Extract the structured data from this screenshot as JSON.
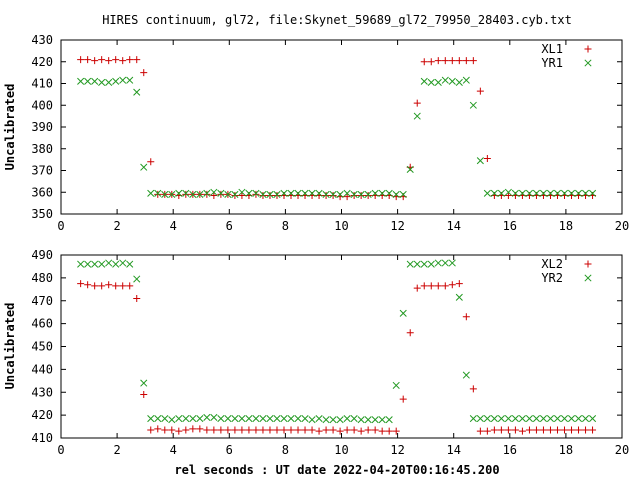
{
  "title": "HIRES continuum, gl72, file:Skynet_59689_gl72_79950_28403.cyb.txt",
  "xlabel": "rel seconds : UT date 2022-04-20T00:16:45.200",
  "colors": {
    "red": "#cc0000",
    "green": "#229922"
  },
  "chart_data": [
    {
      "type": "scatter",
      "ylabel": "Uncalibrated",
      "xlim": [
        0,
        20
      ],
      "ylim": [
        350,
        430
      ],
      "xticks": [
        0,
        2,
        4,
        6,
        8,
        10,
        12,
        14,
        16,
        18,
        20
      ],
      "yticks": [
        350,
        360,
        370,
        380,
        390,
        400,
        410,
        420,
        430
      ],
      "legend_position": "top-right",
      "grid": false,
      "series": [
        {
          "name": "XL1",
          "marker": "plus",
          "color": "#cc0000",
          "x": [
            0.7,
            0.95,
            1.2,
            1.45,
            1.7,
            1.95,
            2.2,
            2.45,
            2.7,
            2.95,
            3.2,
            3.45,
            3.7,
            3.95,
            4.2,
            4.45,
            4.7,
            4.95,
            5.2,
            5.45,
            5.7,
            5.95,
            6.2,
            6.45,
            6.7,
            6.95,
            7.2,
            7.45,
            7.7,
            7.95,
            8.2,
            8.45,
            8.7,
            8.95,
            9.2,
            9.45,
            9.7,
            9.95,
            10.2,
            10.45,
            10.7,
            10.95,
            11.2,
            11.45,
            11.7,
            11.95,
            12.2,
            12.45,
            12.7,
            12.95,
            13.2,
            13.45,
            13.7,
            13.95,
            14.2,
            14.45,
            14.7,
            14.95,
            15.2,
            15.45,
            15.7,
            15.95,
            16.2,
            16.45,
            16.7,
            16.95,
            17.2,
            17.45,
            17.7,
            17.95,
            18.2,
            18.45,
            18.7,
            18.95
          ],
          "y": [
            421,
            421,
            420.5,
            421,
            420.5,
            421,
            420.5,
            421,
            421,
            415,
            374,
            359,
            359,
            359,
            358.5,
            359,
            359,
            359,
            359,
            358.5,
            359,
            359,
            358.5,
            358.5,
            358.5,
            359,
            358.5,
            358.5,
            358.5,
            358.5,
            358.5,
            358.5,
            358.5,
            358.5,
            358.5,
            358.5,
            358.5,
            358,
            358,
            358.5,
            358.5,
            358.5,
            358.5,
            358.5,
            358.5,
            358,
            358,
            371.5,
            401,
            420,
            420,
            420.5,
            420.5,
            420.5,
            420.5,
            420.5,
            420.5,
            406.5,
            375.5,
            358.5,
            358.5,
            358.5,
            358.5,
            358.5,
            358.5,
            358.5,
            358.5,
            358.5,
            358.5,
            358.5,
            358.5,
            358.5,
            358.5,
            358.5
          ]
        },
        {
          "name": "YR1",
          "marker": "cross",
          "color": "#229922",
          "x": [
            0.7,
            0.95,
            1.2,
            1.45,
            1.7,
            1.95,
            2.2,
            2.45,
            2.7,
            2.95,
            3.2,
            3.45,
            3.7,
            3.95,
            4.2,
            4.45,
            4.7,
            4.95,
            5.2,
            5.45,
            5.7,
            5.95,
            6.2,
            6.45,
            6.7,
            6.95,
            7.2,
            7.45,
            7.7,
            7.95,
            8.2,
            8.45,
            8.7,
            8.95,
            9.2,
            9.45,
            9.7,
            9.95,
            10.2,
            10.45,
            10.7,
            10.95,
            11.2,
            11.45,
            11.7,
            11.95,
            12.2,
            12.45,
            12.7,
            12.95,
            13.2,
            13.45,
            13.7,
            13.95,
            14.2,
            14.45,
            14.7,
            14.95,
            15.2,
            15.45,
            15.7,
            15.95,
            16.2,
            16.45,
            16.7,
            16.95,
            17.2,
            17.45,
            17.7,
            17.95,
            18.2,
            18.45,
            18.7,
            18.95
          ],
          "y": [
            411,
            411,
            411,
            410.5,
            410.5,
            411,
            411.5,
            411.5,
            406,
            371.5,
            359.5,
            359.5,
            359,
            359,
            359.5,
            359.5,
            359,
            359,
            359.5,
            360,
            359.5,
            359,
            359,
            360,
            359.5,
            359.5,
            359,
            359,
            359,
            359.5,
            359.5,
            359.5,
            359.5,
            359.5,
            359.5,
            359,
            359,
            359,
            359.5,
            359,
            359,
            359,
            359.5,
            359.5,
            359.5,
            359,
            359,
            370.5,
            395,
            411,
            410.5,
            410.5,
            411.5,
            411,
            410.5,
            411.5,
            400,
            374.5,
            359.5,
            359.5,
            359.5,
            360,
            359.5,
            359.5,
            359.5,
            359.5,
            359.5,
            359.5,
            359.5,
            359.5,
            359.5,
            359.5,
            359.5,
            359.5
          ]
        }
      ]
    },
    {
      "type": "scatter",
      "ylabel": "Uncalibrated",
      "xlim": [
        0,
        20
      ],
      "ylim": [
        410,
        490
      ],
      "xticks": [
        0,
        2,
        4,
        6,
        8,
        10,
        12,
        14,
        16,
        18,
        20
      ],
      "yticks": [
        410,
        420,
        430,
        440,
        450,
        460,
        470,
        480,
        490
      ],
      "legend_position": "top-right",
      "grid": false,
      "series": [
        {
          "name": "XL2",
          "marker": "plus",
          "color": "#cc0000",
          "x": [
            0.7,
            0.95,
            1.2,
            1.45,
            1.7,
            1.95,
            2.2,
            2.45,
            2.7,
            2.95,
            3.2,
            3.45,
            3.7,
            3.95,
            4.2,
            4.45,
            4.7,
            4.95,
            5.2,
            5.45,
            5.7,
            5.95,
            6.2,
            6.45,
            6.7,
            6.95,
            7.2,
            7.45,
            7.7,
            7.95,
            8.2,
            8.45,
            8.7,
            8.95,
            9.2,
            9.45,
            9.7,
            9.95,
            10.2,
            10.45,
            10.7,
            10.95,
            11.2,
            11.45,
            11.7,
            11.95,
            12.2,
            12.45,
            12.7,
            12.95,
            13.2,
            13.45,
            13.7,
            13.95,
            14.2,
            14.45,
            14.7,
            14.95,
            15.2,
            15.45,
            15.7,
            15.95,
            16.2,
            16.45,
            16.7,
            16.95,
            17.2,
            17.45,
            17.7,
            17.95,
            18.2,
            18.45,
            18.7,
            18.95
          ],
          "y": [
            477.5,
            477,
            476.5,
            476.5,
            477,
            476.5,
            476.5,
            476.5,
            471,
            429,
            413.5,
            414,
            413.5,
            413.5,
            413,
            413.5,
            414,
            414,
            413.5,
            413.5,
            413.5,
            413.5,
            413.5,
            413.5,
            413.5,
            413.5,
            413.5,
            413.5,
            413.5,
            413.5,
            413.5,
            413.5,
            413.5,
            413.5,
            413,
            413.5,
            413.5,
            413,
            413.5,
            413.5,
            413,
            413.5,
            413.5,
            413,
            413,
            413,
            427,
            456,
            475.5,
            476.5,
            476.5,
            476.5,
            476.5,
            477,
            477.5,
            463,
            431.5,
            413,
            413,
            413.5,
            413.5,
            413.5,
            413.5,
            413,
            413.5,
            413.5,
            413.5,
            413.5,
            413.5,
            413.5,
            413.5,
            413.5,
            413.5,
            413.5
          ]
        },
        {
          "name": "YR2",
          "marker": "cross",
          "color": "#229922",
          "x": [
            0.7,
            0.95,
            1.2,
            1.45,
            1.7,
            1.95,
            2.2,
            2.45,
            2.7,
            2.95,
            3.2,
            3.45,
            3.7,
            3.95,
            4.2,
            4.45,
            4.7,
            4.95,
            5.2,
            5.45,
            5.7,
            5.95,
            6.2,
            6.45,
            6.7,
            6.95,
            7.2,
            7.45,
            7.7,
            7.95,
            8.2,
            8.45,
            8.7,
            8.95,
            9.2,
            9.45,
            9.7,
            9.95,
            10.2,
            10.45,
            10.7,
            10.95,
            11.2,
            11.45,
            11.7,
            11.95,
            12.2,
            12.45,
            12.7,
            12.95,
            13.2,
            13.45,
            13.7,
            13.95,
            14.2,
            14.45,
            14.7,
            14.95,
            15.2,
            15.45,
            15.7,
            15.95,
            16.2,
            16.45,
            16.7,
            16.95,
            17.2,
            17.45,
            17.7,
            17.95,
            18.2,
            18.45,
            18.7,
            18.95
          ],
          "y": [
            486,
            486,
            486,
            486,
            486.5,
            486,
            486.5,
            486,
            479.5,
            434,
            418.5,
            418.5,
            418.5,
            418,
            418.5,
            418.5,
            418.5,
            418.5,
            419,
            419,
            418.5,
            418.5,
            418.5,
            418.5,
            418.5,
            418.5,
            418.5,
            418.5,
            418.5,
            418.5,
            418.5,
            418.5,
            418.5,
            418,
            418.5,
            418,
            418,
            418,
            418.5,
            418.5,
            418,
            418,
            418,
            418,
            418,
            433,
            464.5,
            486,
            486,
            486,
            486,
            486.5,
            486.5,
            486.5,
            471.5,
            437.5,
            418.5,
            418.5,
            418.5,
            418.5,
            418.5,
            418.5,
            418.5,
            418.5,
            418.5,
            418.5,
            418.5,
            418.5,
            418.5,
            418.5,
            418.5,
            418.5,
            418.5,
            418.5
          ]
        }
      ]
    }
  ]
}
